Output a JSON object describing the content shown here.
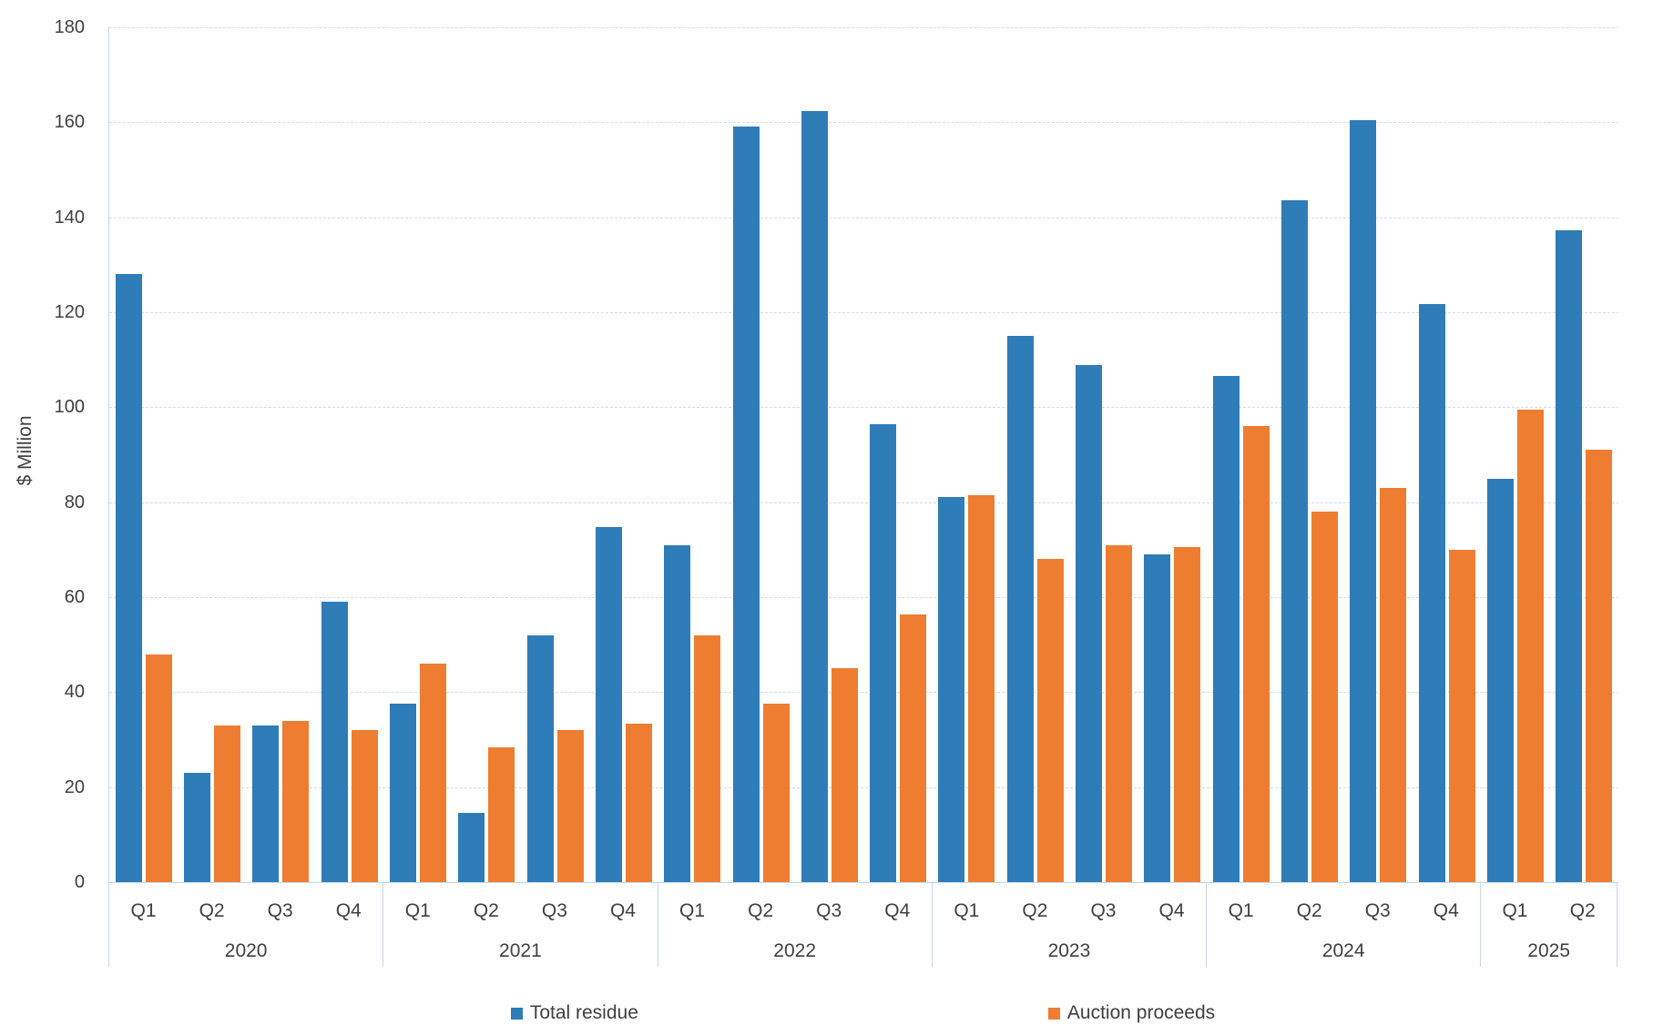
{
  "chart_data": {
    "type": "bar",
    "title": "",
    "ylabel": "$ Million",
    "ylim": [
      0,
      180
    ],
    "ystep": 20,
    "yticks": [
      "0",
      "20",
      "40",
      "60",
      "80",
      "100",
      "120",
      "140",
      "160",
      "180"
    ],
    "grid": "horizontal-dashed",
    "legend_position": "bottom",
    "categories": [
      {
        "year": "2020",
        "quarters": [
          "Q1",
          "Q2",
          "Q3",
          "Q4"
        ]
      },
      {
        "year": "2021",
        "quarters": [
          "Q1",
          "Q2",
          "Q3",
          "Q4"
        ]
      },
      {
        "year": "2022",
        "quarters": [
          "Q1",
          "Q2",
          "Q3",
          "Q4"
        ]
      },
      {
        "year": "2023",
        "quarters": [
          "Q1",
          "Q2",
          "Q3",
          "Q4"
        ]
      },
      {
        "year": "2024",
        "quarters": [
          "Q1",
          "Q2",
          "Q3",
          "Q4"
        ]
      },
      {
        "year": "2025",
        "quarters": [
          "Q1",
          "Q2"
        ]
      }
    ],
    "series": [
      {
        "name": "Total residue",
        "color": "#2E7CB8",
        "values": [
          128,
          23,
          33,
          59,
          37.5,
          14.5,
          52,
          74.8,
          71,
          159.2,
          162.3,
          96.5,
          81,
          115,
          108.8,
          69,
          106.5,
          143.5,
          160.4,
          121.8,
          84.9,
          137.2
        ]
      },
      {
        "name": "Auction proceeds",
        "color": "#EE7D31",
        "values": [
          48,
          33,
          34,
          32,
          46,
          28.3,
          32,
          33.4,
          52,
          37.5,
          45,
          56.4,
          81.4,
          68,
          71,
          70.5,
          96,
          78,
          83,
          70,
          99.4,
          91
        ]
      }
    ]
  },
  "colors": {
    "axis_line": "#c3d7ec",
    "gridline": "#cfdef2",
    "text": "#404040",
    "background": "#ffffff"
  }
}
